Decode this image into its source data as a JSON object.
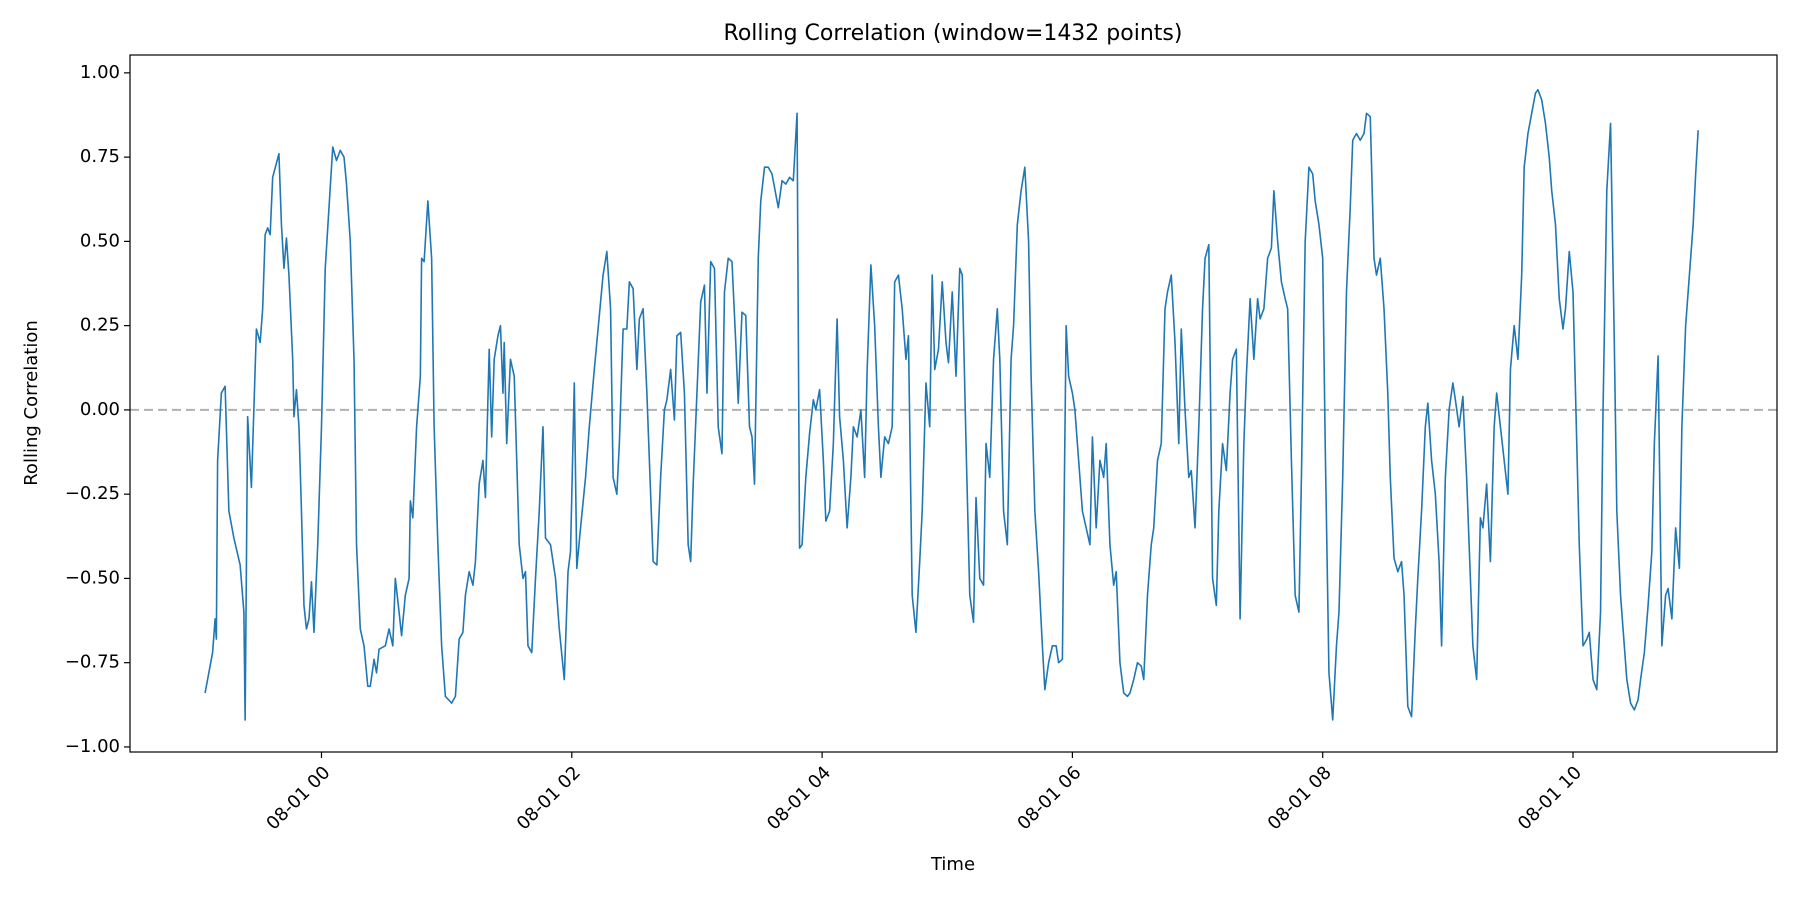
{
  "chart_data": {
    "type": "line",
    "title": "Rolling Correlation (window=1432 points)",
    "xlabel": "Time",
    "ylabel": "Rolling Correlation",
    "color": "#1f77b4",
    "reference_line": {
      "value": 0,
      "color": "#b0b0b0",
      "style": "dashed"
    },
    "xlim": [
      -1.53,
      11.63
    ],
    "xticks": [
      {
        "value": 0,
        "label": "08-01 00"
      },
      {
        "value": 2,
        "label": "08-01 02"
      },
      {
        "value": 4,
        "label": "08-01 04"
      },
      {
        "value": 6,
        "label": "08-01 06"
      },
      {
        "value": 8,
        "label": "08-01 08"
      },
      {
        "value": 10,
        "label": "08-01 10"
      }
    ],
    "ylim": [
      -1.015,
      1.053
    ],
    "yticks": [
      {
        "value": -1,
        "label": "−1.00"
      },
      {
        "value": -0.75,
        "label": "−0.75"
      },
      {
        "value": -0.5,
        "label": "−0.50"
      },
      {
        "value": -0.25,
        "label": "−0.25"
      },
      {
        "value": 0,
        "label": "0.00"
      },
      0.25,
      {
        "value": 0.5,
        "label": "0.50"
      },
      0.75,
      {
        "value": 1,
        "label": "1.00"
      }
    ],
    "x": [
      -0.93,
      -0.87,
      -0.85,
      -0.84,
      -0.83,
      -0.8,
      -0.77,
      -0.74,
      -0.7,
      -0.65,
      -0.62,
      -0.61,
      -0.59,
      -0.56,
      -0.52,
      -0.49,
      -0.47,
      -0.45,
      -0.43,
      -0.41,
      -0.39,
      -0.34,
      -0.32,
      -0.3,
      -0.28,
      -0.26,
      -0.23,
      -0.22,
      -0.2,
      -0.18,
      -0.16,
      -0.14,
      -0.12,
      -0.1,
      -0.08,
      -0.06,
      -0.03,
      0,
      0.03,
      0.06,
      0.09,
      0.12,
      0.15,
      0.18,
      0.2,
      0.23,
      0.26,
      0.28,
      0.31,
      0.34,
      0.37,
      0.39,
      0.42,
      0.44,
      0.46,
      0.51,
      0.54,
      0.57,
      0.59,
      0.62,
      0.64,
      0.67,
      0.7,
      0.71,
      0.73,
      0.76,
      0.79,
      0.8,
      0.82,
      0.85,
      0.88,
      0.9,
      0.93,
      0.96,
      0.99,
      1.04,
      1.07,
      1.1,
      1.13,
      1.15,
      1.18,
      1.21,
      1.23,
      1.26,
      1.29,
      1.31,
      1.34,
      1.36,
      1.38,
      1.41,
      1.43,
      1.45,
      1.46,
      1.48,
      1.51,
      1.54,
      1.56,
      1.58,
      1.61,
      1.63,
      1.65,
      1.68,
      1.71,
      1.74,
      1.77,
      1.79,
      1.83,
      1.87,
      1.9,
      1.94,
      1.97,
      1.99,
      2.02,
      2.04,
      2.07,
      2.11,
      2.14,
      2.18,
      2.22,
      2.25,
      2.28,
      2.31,
      2.33,
      2.36,
      2.38,
      2.41,
      2.44,
      2.46,
      2.49,
      2.52,
      2.54,
      2.57,
      2.6,
      2.63,
      2.65,
      2.68,
      2.71,
      2.74,
      2.76,
      2.79,
      2.82,
      2.84,
      2.87,
      2.9,
      2.93,
      2.95,
      2.97,
      3,
      3.03,
      3.06,
      3.08,
      3.11,
      3.14,
      3.17,
      3.2,
      3.22,
      3.25,
      3.28,
      3.31,
      3.33,
      3.36,
      3.39,
      3.42,
      3.44,
      3.46,
      3.49,
      3.51,
      3.54,
      3.57,
      3.6,
      3.62,
      3.65,
      3.68,
      3.71,
      3.74,
      3.77,
      3.8,
      3.82,
      3.84,
      3.87,
      3.9,
      3.93,
      3.95,
      3.98,
      4.01,
      4.03,
      4.06,
      4.09,
      4.12,
      4.14,
      4.17,
      4.2,
      4.23,
      4.25,
      4.28,
      4.31,
      4.34,
      4.36,
      4.39,
      4.42,
      4.45,
      4.47,
      4.5,
      4.53,
      4.56,
      4.58,
      4.61,
      4.64,
      4.67,
      4.69,
      4.72,
      4.75,
      4.78,
      4.8,
      4.83,
      4.86,
      4.88,
      4.9,
      4.93,
      4.96,
      4.99,
      5.01,
      5.04,
      5.07,
      5.1,
      5.12,
      5.15,
      5.18,
      5.21,
      5.23,
      5.26,
      5.29,
      5.31,
      5.34,
      5.37,
      5.4,
      5.42,
      5.45,
      5.48,
      5.51,
      5.53,
      5.56,
      5.59,
      5.62,
      5.65,
      5.67,
      5.7,
      5.73,
      5.76,
      5.78,
      5.81,
      5.84,
      5.87,
      5.89,
      5.92,
      5.95,
      5.97,
      6,
      6.02,
      6.05,
      6.08,
      6.11,
      6.14,
      6.16,
      6.19,
      6.22,
      6.25,
      6.27,
      6.3,
      6.33,
      6.35,
      6.38,
      6.41,
      6.44,
      6.46,
      6.49,
      6.52,
      6.55,
      6.57,
      6.6,
      6.63,
      6.65,
      6.68,
      6.71,
      6.74,
      6.76,
      6.79,
      6.82,
      6.85,
      6.87,
      6.9,
      6.93,
      6.95,
      6.98,
      7.01,
      7.04,
      7.06,
      7.09,
      7.12,
      7.15,
      7.17,
      7.2,
      7.23,
      7.26,
      7.28,
      7.31,
      7.34,
      7.37,
      7.39,
      7.42,
      7.45,
      7.48,
      7.5,
      7.53,
      7.56,
      7.59,
      7.61,
      7.64,
      7.67,
      7.7,
      7.72,
      7.75,
      7.78,
      7.81,
      7.83,
      7.86,
      7.89,
      7.92,
      7.94,
      7.97,
      8,
      8.02,
      8.05,
      8.08,
      8.11,
      8.13,
      8.16,
      8.19,
      8.22,
      8.24,
      8.27,
      8.3,
      8.33,
      8.35,
      8.38,
      8.41,
      8.43,
      8.46,
      8.49,
      8.52,
      8.54,
      8.57,
      8.6,
      8.63,
      8.65,
      8.68,
      8.71,
      8.74,
      8.76,
      8.79,
      8.82,
      8.84,
      8.87,
      8.9,
      8.93,
      8.95,
      8.98,
      9.01,
      9.04,
      9.06,
      9.09,
      9.12,
      9.15,
      9.17,
      9.2,
      9.23,
      9.26,
      9.28,
      9.31,
      9.34,
      9.37,
      9.39,
      9.42,
      9.45,
      9.48,
      9.5,
      9.53,
      9.56,
      9.59,
      9.61,
      9.64,
      9.67,
      9.7,
      9.72,
      9.75,
      9.78,
      9.81,
      9.83,
      9.86,
      9.89,
      9.92,
      9.94,
      9.97,
      10,
      10.02,
      10.05,
      10.08,
      10.11,
      10.13,
      10.16,
      10.19,
      10.22,
      10.24,
      10.27,
      10.3,
      10.33,
      10.35,
      10.38,
      10.41,
      10.43,
      10.46,
      10.49,
      10.52,
      10.54,
      10.57,
      10.6,
      10.63,
      10.65,
      10.68,
      10.71,
      10.74,
      10.76,
      10.79,
      10.82,
      10.85,
      10.87,
      10.9,
      10.93,
      10.96,
      10.98,
      11
    ],
    "values": [
      -0.84,
      -0.72,
      -0.62,
      -0.68,
      -0.15,
      0.05,
      0.07,
      -0.3,
      -0.38,
      -0.46,
      -0.6,
      -0.92,
      -0.02,
      -0.23,
      0.24,
      0.2,
      0.3,
      0.52,
      0.54,
      0.52,
      0.69,
      0.76,
      0.55,
      0.42,
      0.51,
      0.4,
      0.15,
      -0.02,
      0.06,
      -0.05,
      -0.3,
      -0.58,
      -0.65,
      -0.62,
      -0.51,
      -0.66,
      -0.4,
      -0.05,
      0.42,
      0.6,
      0.78,
      0.74,
      0.77,
      0.75,
      0.67,
      0.5,
      0.15,
      -0.4,
      -0.65,
      -0.7,
      -0.82,
      -0.82,
      -0.74,
      -0.78,
      -0.71,
      -0.7,
      -0.65,
      -0.7,
      -0.5,
      -0.6,
      -0.67,
      -0.55,
      -0.5,
      -0.27,
      -0.32,
      -0.05,
      0.1,
      0.45,
      0.44,
      0.62,
      0.45,
      -0.05,
      -0.4,
      -0.7,
      -0.85,
      -0.87,
      -0.85,
      -0.68,
      -0.66,
      -0.55,
      -0.48,
      -0.52,
      -0.45,
      -0.22,
      -0.15,
      -0.26,
      0.18,
      -0.08,
      0.15,
      0.22,
      0.25,
      0.05,
      0.2,
      -0.1,
      0.15,
      0.1,
      -0.15,
      -0.4,
      -0.5,
      -0.48,
      -0.7,
      -0.72,
      -0.5,
      -0.3,
      -0.05,
      -0.38,
      -0.4,
      -0.5,
      -0.65,
      -0.8,
      -0.48,
      -0.42,
      0.08,
      -0.47,
      -0.35,
      -0.2,
      -0.05,
      0.12,
      0.28,
      0.4,
      0.47,
      0.3,
      -0.2,
      -0.25,
      -0.1,
      0.24,
      0.24,
      0.38,
      0.36,
      0.12,
      0.27,
      0.3,
      0.05,
      -0.25,
      -0.45,
      -0.46,
      -0.2,
      0,
      0.03,
      0.12,
      -0.03,
      0.22,
      0.23,
      0.05,
      -0.4,
      -0.45,
      -0.22,
      0.05,
      0.32,
      0.37,
      0.05,
      0.44,
      0.42,
      -0.05,
      -0.13,
      0.35,
      0.45,
      0.44,
      0.2,
      0.02,
      0.29,
      0.28,
      -0.05,
      -0.08,
      -0.22,
      0.45,
      0.62,
      0.72,
      0.72,
      0.7,
      0.66,
      0.6,
      0.68,
      0.67,
      0.69,
      0.68,
      0.88,
      -0.41,
      -0.4,
      -0.2,
      -0.07,
      0.03,
      0,
      0.06,
      -0.15,
      -0.33,
      -0.3,
      -0.1,
      0.27,
      -0.02,
      -0.15,
      -0.35,
      -0.2,
      -0.05,
      -0.08,
      0,
      -0.2,
      0.12,
      0.43,
      0.25,
      -0.05,
      -0.2,
      -0.08,
      -0.1,
      -0.05,
      0.38,
      0.4,
      0.3,
      0.15,
      0.22,
      -0.55,
      -0.66,
      -0.45,
      -0.3,
      0.08,
      -0.05,
      0.4,
      0.12,
      0.18,
      0.38,
      0.2,
      0.14,
      0.35,
      0.1,
      0.42,
      0.4,
      -0.1,
      -0.55,
      -0.63,
      -0.26,
      -0.5,
      -0.52,
      -0.1,
      -0.2,
      0.15,
      0.3,
      0.15,
      -0.3,
      -0.4,
      0.15,
      0.25,
      0.55,
      0.65,
      0.72,
      0.5,
      0.1,
      -0.3,
      -0.48,
      -0.7,
      -0.83,
      -0.75,
      -0.7,
      -0.7,
      -0.75,
      -0.74,
      0.25,
      0.1,
      0.05,
      0,
      -0.15,
      -0.3,
      -0.35,
      -0.4,
      -0.08,
      -0.35,
      -0.15,
      -0.2,
      -0.1,
      -0.4,
      -0.52,
      -0.48,
      -0.75,
      -0.84,
      -0.85,
      -0.84,
      -0.8,
      -0.75,
      -0.76,
      -0.8,
      -0.55,
      -0.4,
      -0.35,
      -0.15,
      -0.1,
      0.3,
      0.35,
      0.4,
      0.2,
      -0.1,
      0.24,
      0,
      -0.2,
      -0.18,
      -0.35,
      -0.05,
      0.3,
      0.45,
      0.49,
      -0.5,
      -0.58,
      -0.3,
      -0.1,
      -0.18,
      0.05,
      0.15,
      0.18,
      -0.62,
      -0.1,
      0.1,
      0.33,
      0.15,
      0.33,
      0.27,
      0.3,
      0.45,
      0.48,
      0.65,
      0.5,
      0.38,
      0.33,
      0.3,
      -0.15,
      -0.55,
      -0.6,
      -0.2,
      0.5,
      0.72,
      0.7,
      0.62,
      0.55,
      0.45,
      -0.1,
      -0.78,
      -0.92,
      -0.7,
      -0.6,
      -0.2,
      0.35,
      0.6,
      0.8,
      0.82,
      0.8,
      0.82,
      0.88,
      0.87,
      0.45,
      0.4,
      0.45,
      0.3,
      0.05,
      -0.2,
      -0.44,
      -0.48,
      -0.45,
      -0.55,
      -0.88,
      -0.91,
      -0.65,
      -0.5,
      -0.3,
      -0.05,
      0.02,
      -0.15,
      -0.25,
      -0.45,
      -0.7,
      -0.2,
      0,
      0.08,
      0.03,
      -0.05,
      0.04,
      -0.2,
      -0.4,
      -0.7,
      -0.8,
      -0.32,
      -0.35,
      -0.22,
      -0.45,
      -0.05,
      0.05,
      -0.05,
      -0.15,
      -0.25,
      0.12,
      0.25,
      0.15,
      0.4,
      0.72,
      0.82,
      0.88,
      0.94,
      0.95,
      0.92,
      0.85,
      0.75,
      0.65,
      0.55,
      0.33,
      0.24,
      0.3,
      0.47,
      0.35,
      0.05,
      -0.4,
      -0.7,
      -0.68,
      -0.66,
      -0.8,
      -0.83,
      -0.6,
      0,
      0.65,
      0.85,
      0.2,
      -0.3,
      -0.55,
      -0.7,
      -0.8,
      -0.87,
      -0.89,
      -0.86,
      -0.8,
      -0.72,
      -0.58,
      -0.42,
      -0.1,
      0.16,
      -0.7,
      -0.55,
      -0.53,
      -0.62,
      -0.35,
      -0.47,
      -0.05,
      0.25,
      0.4,
      0.55,
      0.7,
      0.83
    ]
  }
}
